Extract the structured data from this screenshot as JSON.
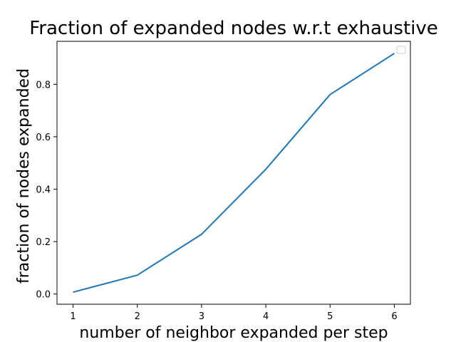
{
  "chart_data": {
    "type": "line",
    "title": "Fraction of expanded nodes w.r.t exhaustive",
    "xlabel": "number of neighbor expanded per step",
    "ylabel": "fraction of nodes expanded",
    "x": [
      1,
      2,
      3,
      4,
      5,
      6
    ],
    "series": [
      {
        "values": [
          0.007,
          0.072,
          0.228,
          0.476,
          0.761,
          0.918
        ],
        "color": "#1f77b4"
      }
    ],
    "xlim": [
      0.75,
      6.25
    ],
    "ylim": [
      -0.039,
      0.964
    ],
    "xticks": [
      1,
      2,
      3,
      4,
      5,
      6
    ],
    "xtick_labels": [
      "1",
      "2",
      "3",
      "4",
      "5",
      "6"
    ],
    "yticks": [
      0.0,
      0.2,
      0.4,
      0.6,
      0.8
    ],
    "ytick_labels": [
      "0.0",
      "0.2",
      "0.4",
      "0.6",
      "0.8"
    ],
    "grid": false,
    "legend": {
      "placement": "top-right",
      "entries": []
    }
  }
}
